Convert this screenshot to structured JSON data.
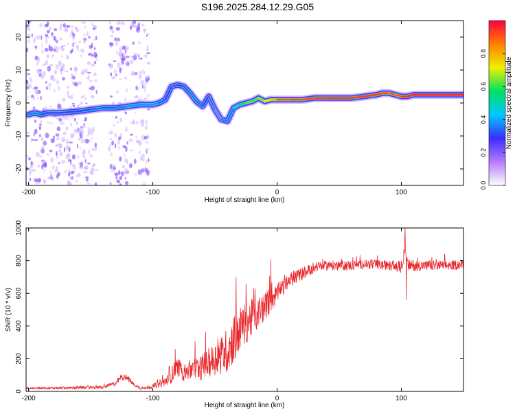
{
  "figure_title": "S196.2025.284.12.29.G05",
  "colors": {
    "snr_line": "#e8262b",
    "frame": "#000000",
    "ridge_outer": "#b57bff",
    "ridge_mid": "#3b2dff",
    "ridge_inner": "#2ee0c8",
    "ridge_peak": "#ff2a1a"
  },
  "chart_data": [
    {
      "type": "heatmap",
      "title": "",
      "xlabel": "Height of straight line (km)",
      "ylabel": "Frequency (Hz)",
      "xlim": [
        -202,
        150
      ],
      "ylim": [
        -25,
        25
      ],
      "xticks": [
        -200,
        -100,
        0,
        100
      ],
      "yticks": [
        -20,
        -10,
        0,
        10,
        20
      ],
      "colorbar": {
        "label": "Normalized spectral amplitude",
        "range": [
          0.0,
          1.0
        ],
        "ticks": [
          0.0,
          0.2,
          0.4,
          0.6,
          0.8
        ],
        "tick_labels": [
          "0.0",
          "0.2",
          "0.4",
          "0.6",
          "0.8"
        ],
        "colors": [
          "#ffffff",
          "#b57bff",
          "#3b2dff",
          "#00c8ff",
          "#00e060",
          "#f0f000",
          "#ff8000",
          "#ff0040"
        ]
      },
      "ridge": {
        "x": [
          -200,
          -195,
          -190,
          -185,
          -175,
          -160,
          -150,
          -140,
          -130,
          -120,
          -110,
          -100,
          -95,
          -90,
          -85,
          -80,
          -75,
          -70,
          -65,
          -60,
          -55,
          -50,
          -45,
          -40,
          -35,
          -30,
          -25,
          -20,
          -15,
          -10,
          -5,
          0,
          10,
          20,
          30,
          40,
          50,
          60,
          70,
          80,
          85,
          90,
          95,
          100,
          105,
          110,
          120,
          130,
          140,
          150
        ],
        "y": [
          -3.5,
          -3.0,
          -3.5,
          -3.0,
          -3.0,
          -2.5,
          -2.0,
          -1.5,
          -1.5,
          -1.0,
          -0.5,
          -0.5,
          0.0,
          1.0,
          5.0,
          5.5,
          5.0,
          3.0,
          0.5,
          -1.0,
          2.0,
          -2.0,
          -5.0,
          -5.5,
          -1.5,
          -0.5,
          0.0,
          0.5,
          1.5,
          0.5,
          1.0,
          1.0,
          1.0,
          1.0,
          1.5,
          1.5,
          1.5,
          1.5,
          2.0,
          2.5,
          3.0,
          3.0,
          2.5,
          2.0,
          2.0,
          2.5,
          2.5,
          2.5,
          2.5,
          2.5
        ],
        "amplitude": [
          0.3,
          0.4,
          0.3,
          0.3,
          0.25,
          0.3,
          0.3,
          0.35,
          0.3,
          0.4,
          0.35,
          0.4,
          0.35,
          0.3,
          0.25,
          0.25,
          0.3,
          0.35,
          0.35,
          0.3,
          0.25,
          0.2,
          0.15,
          0.3,
          0.4,
          0.5,
          0.6,
          0.65,
          0.6,
          0.7,
          0.75,
          0.8,
          0.85,
          0.85,
          0.85,
          0.9,
          0.9,
          0.9,
          0.9,
          0.9,
          0.85,
          0.85,
          0.8,
          0.85,
          0.9,
          0.95,
          0.95,
          0.95,
          0.95,
          0.95
        ]
      },
      "noise_scatter": {
        "x_ranges": [
          [
            -202,
            -145
          ],
          [
            -135,
            -120
          ],
          [
            -118,
            -103
          ]
        ],
        "amplitude_max": 0.25
      }
    },
    {
      "type": "line",
      "title": "",
      "xlabel": "Height of straight line (km)",
      "ylabel": "SNR (10 * v/v)",
      "xlim": [
        -202,
        150
      ],
      "ylim": [
        0,
        1000
      ],
      "xticks": [
        -200,
        -100,
        0,
        100
      ],
      "yticks": [
        0,
        200,
        400,
        600,
        800,
        1000
      ],
      "series": [
        {
          "name": "SNR",
          "envelope_x": [
            -202,
            -180,
            -160,
            -140,
            -130,
            -125,
            -120,
            -115,
            -110,
            -100,
            -90,
            -85,
            -80,
            -75,
            -70,
            -60,
            -50,
            -40,
            -35,
            -30,
            -25,
            -20,
            -10,
            -5,
            0,
            5,
            10,
            20,
            30,
            40,
            50,
            60,
            70,
            80,
            90,
            95,
            100,
            103,
            105,
            110,
            120,
            130,
            140,
            150
          ],
          "envelope_y": [
            20,
            20,
            22,
            25,
            50,
            90,
            80,
            40,
            20,
            30,
            60,
            100,
            150,
            120,
            130,
            150,
            200,
            250,
            320,
            380,
            420,
            450,
            520,
            560,
            600,
            640,
            680,
            720,
            760,
            770,
            770,
            770,
            780,
            775,
            770,
            765,
            760,
            900,
            770,
            770,
            770,
            770,
            770,
            780
          ],
          "noise": [
            5,
            6,
            8,
            10,
            15,
            20,
            20,
            10,
            8,
            15,
            30,
            50,
            60,
            60,
            70,
            80,
            100,
            140,
            150,
            140,
            130,
            120,
            90,
            80,
            60,
            50,
            45,
            40,
            35,
            30,
            30,
            30,
            30,
            30,
            30,
            35,
            40,
            60,
            40,
            35,
            30,
            30,
            30,
            30
          ],
          "spikes": [
            {
              "x": -82,
              "y": 260
            },
            {
              "x": -33,
              "y": 700
            },
            {
              "x": -25,
              "y": 660
            },
            {
              "x": -20,
              "y": 560
            },
            {
              "x": -5,
              "y": 810
            },
            {
              "x": 103,
              "y": 1000
            },
            {
              "x": 104,
              "y": 560
            }
          ]
        }
      ]
    }
  ]
}
